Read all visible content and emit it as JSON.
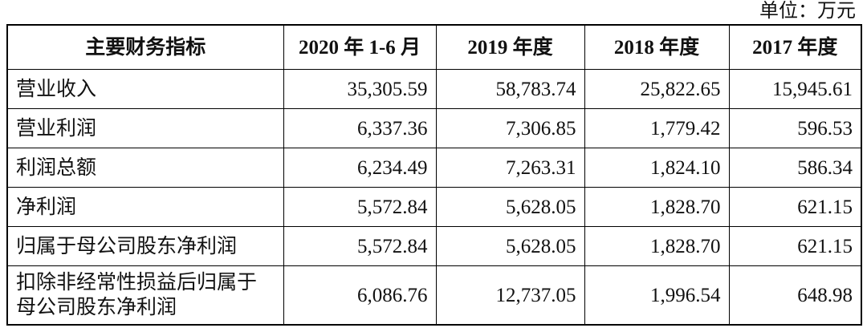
{
  "unit": "单位：万元",
  "table": {
    "header": [
      "主要财务指标",
      "2020 年 1-6 月",
      "2019 年度",
      "2018 年度",
      "2017 年度"
    ],
    "rows": [
      [
        "营业收入",
        "35,305.59",
        "58,783.74",
        "25,822.65",
        "15,945.61"
      ],
      [
        "营业利润",
        "6,337.36",
        "7,306.85",
        "1,779.42",
        "596.53"
      ],
      [
        "利润总额",
        "6,234.49",
        "7,263.31",
        "1,824.10",
        "586.34"
      ],
      [
        "净利润",
        "5,572.84",
        "5,628.05",
        "1,828.70",
        "621.15"
      ],
      [
        "归属于母公司股东净利润",
        "5,572.84",
        "5,628.05",
        "1,828.70",
        "621.15"
      ],
      [
        "扣除非经常性损益后归属于母公司股东净利润",
        "6,086.76",
        "12,737.05",
        "1,996.54",
        "648.98"
      ]
    ]
  }
}
